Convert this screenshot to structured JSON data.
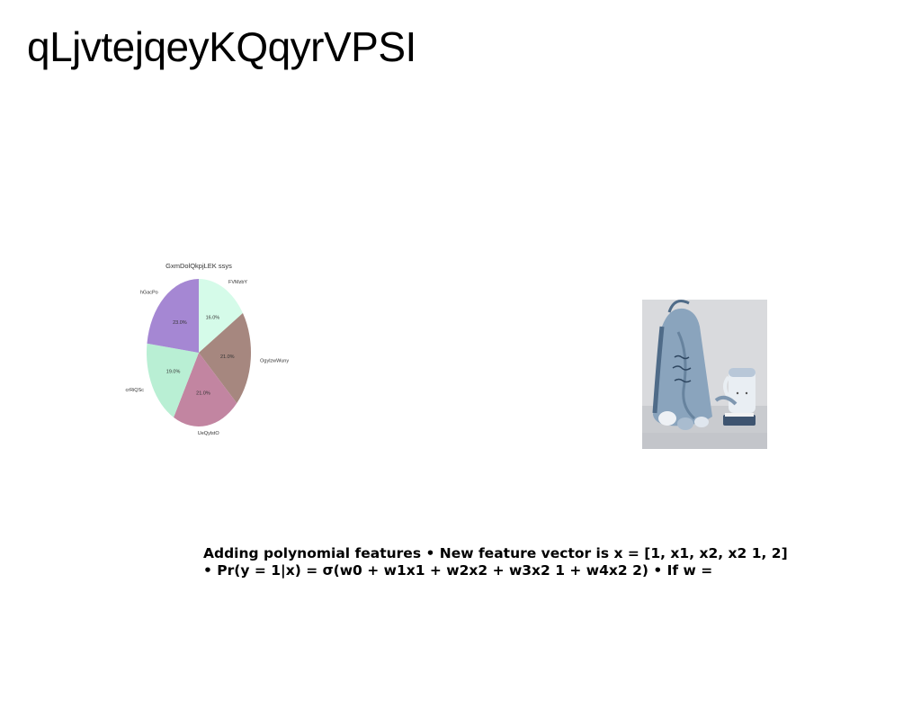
{
  "slide": {
    "title": "qLjvtejqeyKQqyrVPSI",
    "body_text": "Adding polynomial features • New feature vector is x = [1, x1, x2, x2 1, 2] • Pr(y = 1|x) = σ(w0 + w1x1 + w2x2 + w3x2 1 + w4x2 2) • If w ="
  },
  "chart_data": {
    "type": "pie",
    "title": "GxmDolQkpjLEK ssys",
    "labels": [
      "FVMzbY",
      "OgylzwWuny",
      "UeQylstO",
      "crRiQSc",
      "hGacPo"
    ],
    "values": [
      16.0,
      21.0,
      21.0,
      19.0,
      23.0
    ],
    "value_labels": [
      "16.0%",
      "21.0%",
      "21.0%",
      "19.0%",
      "23.0%"
    ],
    "colors": [
      "#d5fbe9",
      "#a6877f",
      "#c285a1",
      "#b9efd4",
      "#a587d3"
    ],
    "start": "top",
    "direction": "clockwise"
  },
  "photo": {
    "alt": "photo-of-tote-bag-and-mug",
    "colors": {
      "background": "#d9dadd",
      "table": "#c9cbcf",
      "bag": "#8aa4bd",
      "bag_dark": "#4f6b88",
      "mug": "#e9eef3",
      "mug_shade": "#b8c7d8"
    }
  }
}
